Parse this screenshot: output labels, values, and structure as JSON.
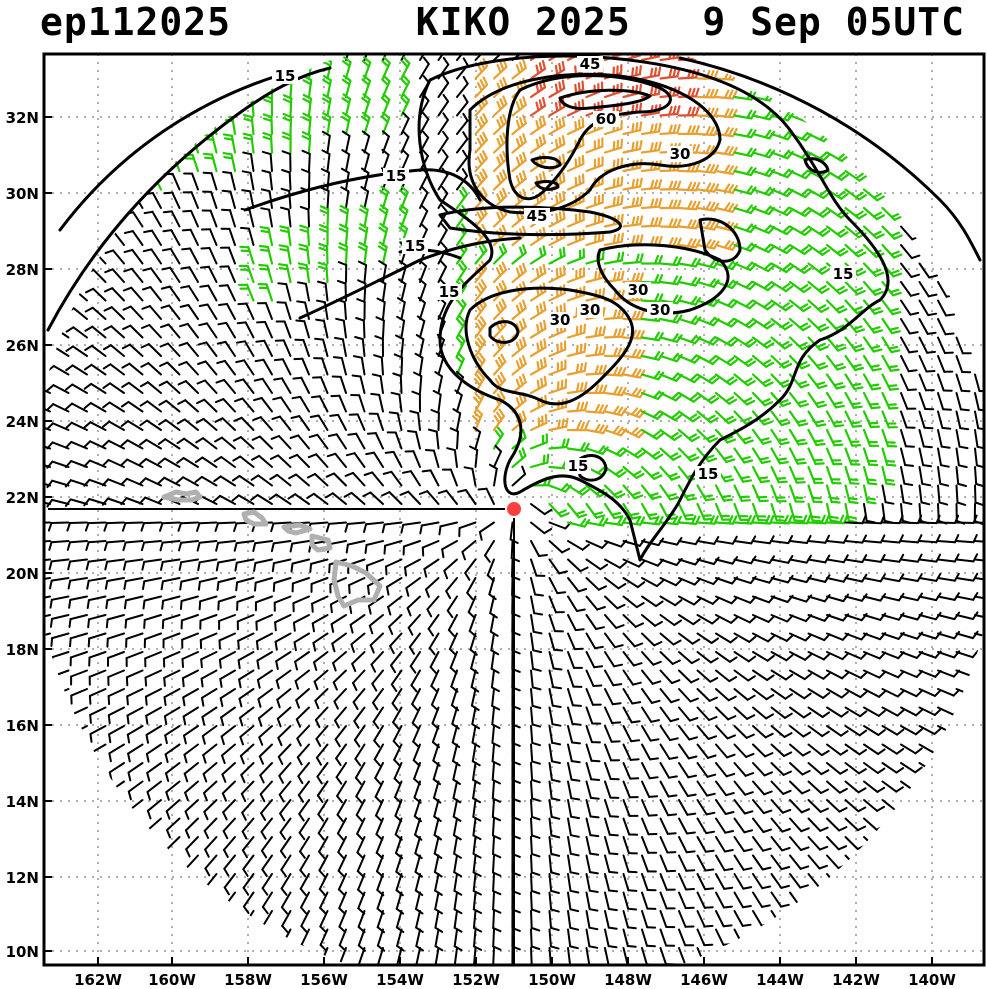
{
  "title": {
    "storm_id": "ep112025",
    "storm_name_year_time": "KIKO 2025   9 Sep 05UTC"
  },
  "axes": {
    "x_ticks": [
      "162W",
      "160W",
      "158W",
      "156W",
      "154W",
      "152W",
      "150W",
      "148W",
      "146W",
      "144W",
      "142W",
      "140W"
    ],
    "y_ticks": [
      "32N",
      "30N",
      "28N",
      "26N",
      "24N",
      "22N",
      "20N",
      "18N",
      "16N",
      "14N",
      "12N",
      "10N"
    ]
  },
  "contour_labels": [
    "15",
    "45",
    "60",
    "30",
    "15",
    "45",
    "15",
    "15",
    "30",
    "30",
    "30",
    "30",
    "15",
    "15",
    "15"
  ],
  "colors": {
    "barb_calm": "#000000",
    "barb_moderate": "#22cc00",
    "barb_strong": "#e8a030",
    "barb_very_strong": "#e05030",
    "barb_extreme": "#e83050",
    "storm_center": "#ff4040",
    "coastline": "#b0b0b0",
    "grid": "#b0b0b0"
  },
  "storm_center_marker": "red-dot"
}
